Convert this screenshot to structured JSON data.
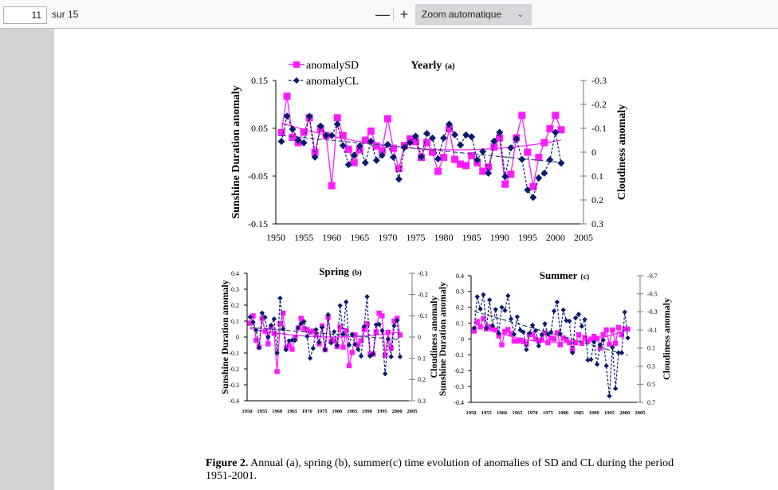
{
  "toolbar": {
    "page_number": "11",
    "page_total": "sur 15",
    "zoom_out_label": "—",
    "zoom_in_label": "+",
    "zoom_value": "Zoom automatique",
    "zoom_chevron": "⌄"
  },
  "caption": {
    "label": "Figure 2.",
    "text": " Annual (a), spring (b), summer(c) time evolution of anomalies of SD and CL during the period 1951-2001."
  },
  "colors": {
    "sd": "#ff1aff",
    "cl": "#0a1a6e",
    "trend_cl": "#2c4a66"
  },
  "chart_data": [
    {
      "type": "line",
      "title": "Yearly",
      "title_suffix": "(a)",
      "xlabel": "",
      "ylabel": "Sunshine Duration anomaly",
      "y2label": "Cloudiness anomaly",
      "xlim": [
        1950,
        2005
      ],
      "xticks": [
        1950,
        1955,
        1960,
        1965,
        1970,
        1975,
        1980,
        1985,
        1990,
        1995,
        2000,
        2005
      ],
      "ylim": [
        -0.15,
        0.15
      ],
      "yticks": [
        "0.15",
        "0.05",
        "-0.05",
        "-0.15"
      ],
      "ytick_values": [
        0.15,
        0.05,
        -0.05,
        -0.15
      ],
      "y2lim": [
        -0.3,
        0.3
      ],
      "y2_inverted": true,
      "y2ticks": [
        "-0.3",
        "-0.2",
        "-0.1",
        "0",
        "0.1",
        "0.2",
        "0.3"
      ],
      "y2tick_values": [
        -0.3,
        -0.2,
        -0.1,
        0,
        0.1,
        0.2,
        0.3
      ],
      "legend": [
        "anomalySD",
        "anomalyCL"
      ],
      "legend_position": "top-left",
      "x": [
        1951,
        1952,
        1953,
        1954,
        1955,
        1956,
        1957,
        1958,
        1959,
        1960,
        1961,
        1962,
        1963,
        1964,
        1965,
        1966,
        1967,
        1968,
        1969,
        1970,
        1971,
        1972,
        1973,
        1974,
        1975,
        1976,
        1977,
        1978,
        1979,
        1980,
        1981,
        1982,
        1983,
        1984,
        1985,
        1986,
        1987,
        1988,
        1989,
        1990,
        1991,
        1992,
        1993,
        1994,
        1995,
        1996,
        1997,
        1998,
        1999,
        2000,
        2001
      ],
      "series": [
        {
          "name": "anomalySD",
          "axis": "left",
          "marker": "square",
          "values": [
            0.041,
            0.117,
            0.031,
            0.02,
            0.042,
            0.072,
            0.0,
            0.049,
            0.035,
            -0.07,
            0.072,
            0.035,
            0.006,
            -0.022,
            0.005,
            0.025,
            0.044,
            0.013,
            0.004,
            0.07,
            0.008,
            -0.034,
            0.014,
            0.028,
            0.022,
            -0.011,
            0.02,
            0.0,
            -0.04,
            -0.011,
            0.049,
            -0.015,
            -0.025,
            -0.028,
            -0.007,
            -0.022,
            -0.04,
            -0.031,
            0.011,
            0.03,
            -0.067,
            -0.046,
            0.03,
            0.077,
            0.0,
            -0.072,
            -0.011,
            0.02,
            0.049,
            0.077,
            0.047
          ],
          "trend": {
            "kind": "poly2",
            "points": [
              [
                1951,
                0.061
              ],
              [
                1981,
                0.005
              ],
              [
                2001,
                0.025
              ]
            ]
          }
        },
        {
          "name": "anomalyCL",
          "axis": "right",
          "marker": "diamond",
          "values": [
            -0.045,
            -0.151,
            -0.096,
            -0.05,
            -0.039,
            -0.15,
            0.021,
            -0.109,
            -0.07,
            -0.07,
            -0.117,
            -0.028,
            0.052,
            0.013,
            -0.026,
            0.044,
            -0.046,
            0.034,
            0.013,
            -0.032,
            0.021,
            0.113,
            -0.02,
            -0.04,
            -0.067,
            0.019,
            -0.078,
            -0.059,
            0.028,
            -0.059,
            -0.117,
            -0.073,
            -0.03,
            -0.072,
            -0.064,
            0.032,
            -0.003,
            0.088,
            -0.046,
            -0.083,
            0.102,
            -0.018,
            -0.056,
            0.03,
            0.158,
            0.189,
            0.108,
            0.088,
            0.032,
            -0.083,
            0.046
          ],
          "trend": {
            "kind": "linear",
            "points": [
              [
                1951,
                -0.07
              ],
              [
                2001,
                0.043
              ]
            ]
          }
        }
      ]
    },
    {
      "type": "line",
      "title": "Spring",
      "title_suffix": "(b)",
      "ylabel": "Sunshine Duration anomaly",
      "y2label": "Cloudiness anomaly",
      "xlim": [
        1950,
        2005
      ],
      "xticks": [
        1950,
        1955,
        1960,
        1965,
        1970,
        1975,
        1980,
        1985,
        1990,
        1995,
        2000,
        2005
      ],
      "ylim": [
        -0.4,
        0.4
      ],
      "yticks": [
        "0.4",
        "0.3",
        "0.2",
        "0.1",
        "0",
        "-0.1",
        "-0.2",
        "-0.3",
        "-0.4"
      ],
      "ytick_values": [
        0.4,
        0.3,
        0.2,
        0.1,
        0,
        -0.1,
        -0.2,
        -0.3,
        -0.4
      ],
      "y2lim": [
        -0.3,
        0.3
      ],
      "y2_inverted": true,
      "y2ticks": [
        "-0.3",
        "-0.2",
        "-0.1",
        "0",
        "0.1",
        "0.2",
        "0.3"
      ],
      "y2tick_values": [
        -0.3,
        -0.2,
        -0.1,
        0,
        0.1,
        0.2,
        0.3
      ],
      "x": [
        1951,
        1952,
        1953,
        1954,
        1955,
        1956,
        1957,
        1958,
        1959,
        1960,
        1961,
        1962,
        1963,
        1964,
        1965,
        1966,
        1967,
        1968,
        1969,
        1970,
        1971,
        1972,
        1973,
        1974,
        1975,
        1976,
        1977,
        1978,
        1979,
        1980,
        1981,
        1982,
        1983,
        1984,
        1985,
        1986,
        1987,
        1988,
        1989,
        1990,
        1991,
        1992,
        1993,
        1994,
        1995,
        1996,
        1997,
        1998,
        1999,
        2000,
        2001
      ],
      "series": [
        {
          "name": "anomalySD",
          "axis": "left",
          "marker": "square",
          "values": [
            0.087,
            0.133,
            -0.02,
            -0.063,
            0.117,
            0.037,
            -0.043,
            0.063,
            0.023,
            -0.217,
            0.083,
            0.15,
            -0.07,
            -0.053,
            -0.077,
            -0.003,
            0.057,
            0.117,
            0.053,
            0.047,
            0.03,
            0.037,
            0.017,
            -0.043,
            0.07,
            -0.08,
            0.123,
            -0.027,
            -0.023,
            -0.06,
            0.063,
            -0.063,
            0.04,
            -0.18,
            -0.097,
            0.013,
            -0.047,
            -0.023,
            0.047,
            0.083,
            -0.107,
            -0.107,
            0.033,
            0.15,
            0.133,
            -0.113,
            0.03,
            -0.07,
            0.1,
            0.117,
            0.013
          ],
          "trend": {
            "kind": "poly2",
            "points": [
              [
                1951,
                0.053
              ],
              [
                1978,
                0.0
              ],
              [
                2001,
                0.033
              ]
            ]
          }
        },
        {
          "name": "anomalyCL",
          "axis": "right",
          "marker": "diamond",
          "values": [
            -0.094,
            -0.07,
            -0.033,
            0.05,
            -0.113,
            -0.093,
            0.0,
            -0.055,
            -0.085,
            0.075,
            -0.183,
            -0.038,
            0.06,
            0.018,
            0.015,
            0.015,
            -0.043,
            -0.063,
            -0.073,
            -0.003,
            0.1,
            0.053,
            -0.035,
            0.025,
            -0.045,
            0.06,
            -0.105,
            0.028,
            -0.025,
            0.04,
            -0.148,
            -0.013,
            -0.165,
            0.038,
            -0.013,
            0.035,
            0.058,
            0.09,
            -0.05,
            -0.19,
            0.09,
            0.08,
            -0.058,
            -0.06,
            -0.03,
            0.173,
            0.01,
            0.093,
            -0.053,
            -0.078,
            0.093
          ],
          "trend": {
            "kind": "linear",
            "points": [
              [
                1951,
                -0.045
              ],
              [
                2001,
                0.012
              ]
            ]
          }
        }
      ]
    },
    {
      "type": "line",
      "title": "Summer",
      "title_suffix": "(c)",
      "ylabel": "Sunshine Duration anomaly",
      "y2label": "Cloudiness anomaly",
      "xlim": [
        1950,
        2005
      ],
      "xticks": [
        1950,
        1955,
        1960,
        1965,
        1970,
        1975,
        1980,
        1985,
        1990,
        1995,
        2000,
        2005
      ],
      "ylim": [
        -0.4,
        0.4
      ],
      "yticks": [
        "0.4",
        "0.3",
        "0.2",
        "0.1",
        "0",
        "-0.1",
        "-0.2",
        "-0.3",
        "-0.4"
      ],
      "ytick_values": [
        0.4,
        0.3,
        0.2,
        0.1,
        0,
        -0.1,
        -0.2,
        -0.3,
        -0.4
      ],
      "y2lim": [
        -0.7,
        0.7
      ],
      "y2_inverted": true,
      "y2ticks": [
        "-0.7",
        "-0.5",
        "-0.3",
        "-0.1",
        "0.1",
        "0.3",
        "0.5",
        "0.7"
      ],
      "y2tick_values": [
        -0.7,
        -0.5,
        -0.3,
        -0.1,
        0.1,
        0.3,
        0.5,
        0.7
      ],
      "x": [
        1951,
        1952,
        1953,
        1954,
        1955,
        1956,
        1957,
        1958,
        1959,
        1960,
        1961,
        1962,
        1963,
        1964,
        1965,
        1966,
        1967,
        1968,
        1969,
        1970,
        1971,
        1972,
        1973,
        1974,
        1975,
        1976,
        1977,
        1978,
        1979,
        1980,
        1981,
        1982,
        1983,
        1984,
        1985,
        1986,
        1987,
        1988,
        1989,
        1990,
        1991,
        1992,
        1993,
        1994,
        1995,
        1996,
        1997,
        1998,
        1999,
        2000,
        2001
      ],
      "series": [
        {
          "name": "anomalySD",
          "axis": "left",
          "marker": "square",
          "values": [
            0.05,
            0.11,
            0.077,
            0.13,
            0.063,
            0.077,
            0.063,
            0.057,
            0.02,
            -0.037,
            0.047,
            0.06,
            0.033,
            -0.013,
            -0.013,
            -0.007,
            -0.017,
            -0.033,
            0.027,
            0.03,
            0.0,
            -0.013,
            -0.007,
            0.04,
            -0.023,
            0.007,
            0.0,
            0.04,
            -0.037,
            0.007,
            -0.003,
            -0.023,
            -0.067,
            -0.023,
            0.027,
            -0.027,
            0.01,
            -0.013,
            0.0,
            0.017,
            0.003,
            -0.057,
            0.027,
            0.057,
            -0.033,
            0.057,
            -0.027,
            0.073,
            0.027,
            0.063,
            0.063
          ],
          "trend": {
            "kind": "poly2",
            "points": [
              [
                1951,
                0.1
              ],
              [
                1982,
                -0.02
              ],
              [
                2001,
                0.06
              ]
            ]
          }
        },
        {
          "name": "anomalyCL",
          "axis": "right",
          "marker": "diamond",
          "values": [
            -0.122,
            -0.467,
            -0.332,
            -0.49,
            -0.122,
            -0.432,
            -0.146,
            -0.327,
            -0.064,
            -0.35,
            -0.315,
            -0.478,
            -0.222,
            -0.052,
            -0.245,
            -0.099,
            -0.076,
            0.117,
            -0.064,
            -0.152,
            -0.093,
            0.076,
            -0.047,
            -0.169,
            -0.052,
            -0.076,
            -0.309,
            -0.408,
            -0.058,
            -0.321,
            -0.204,
            -0.198,
            0.152,
            -0.233,
            -0.274,
            -0.14,
            -0.216,
            0.233,
            0.227,
            0.035,
            0.28,
            0.064,
            0.012,
            0.297,
            0.63,
            0.093,
            0.548,
            0.152,
            0.152,
            -0.297,
            -0.012
          ],
          "trend": {
            "kind": "linear",
            "points": [
              [
                1951,
                -0.306
              ],
              [
                2001,
                0.18
              ]
            ]
          }
        }
      ]
    }
  ]
}
